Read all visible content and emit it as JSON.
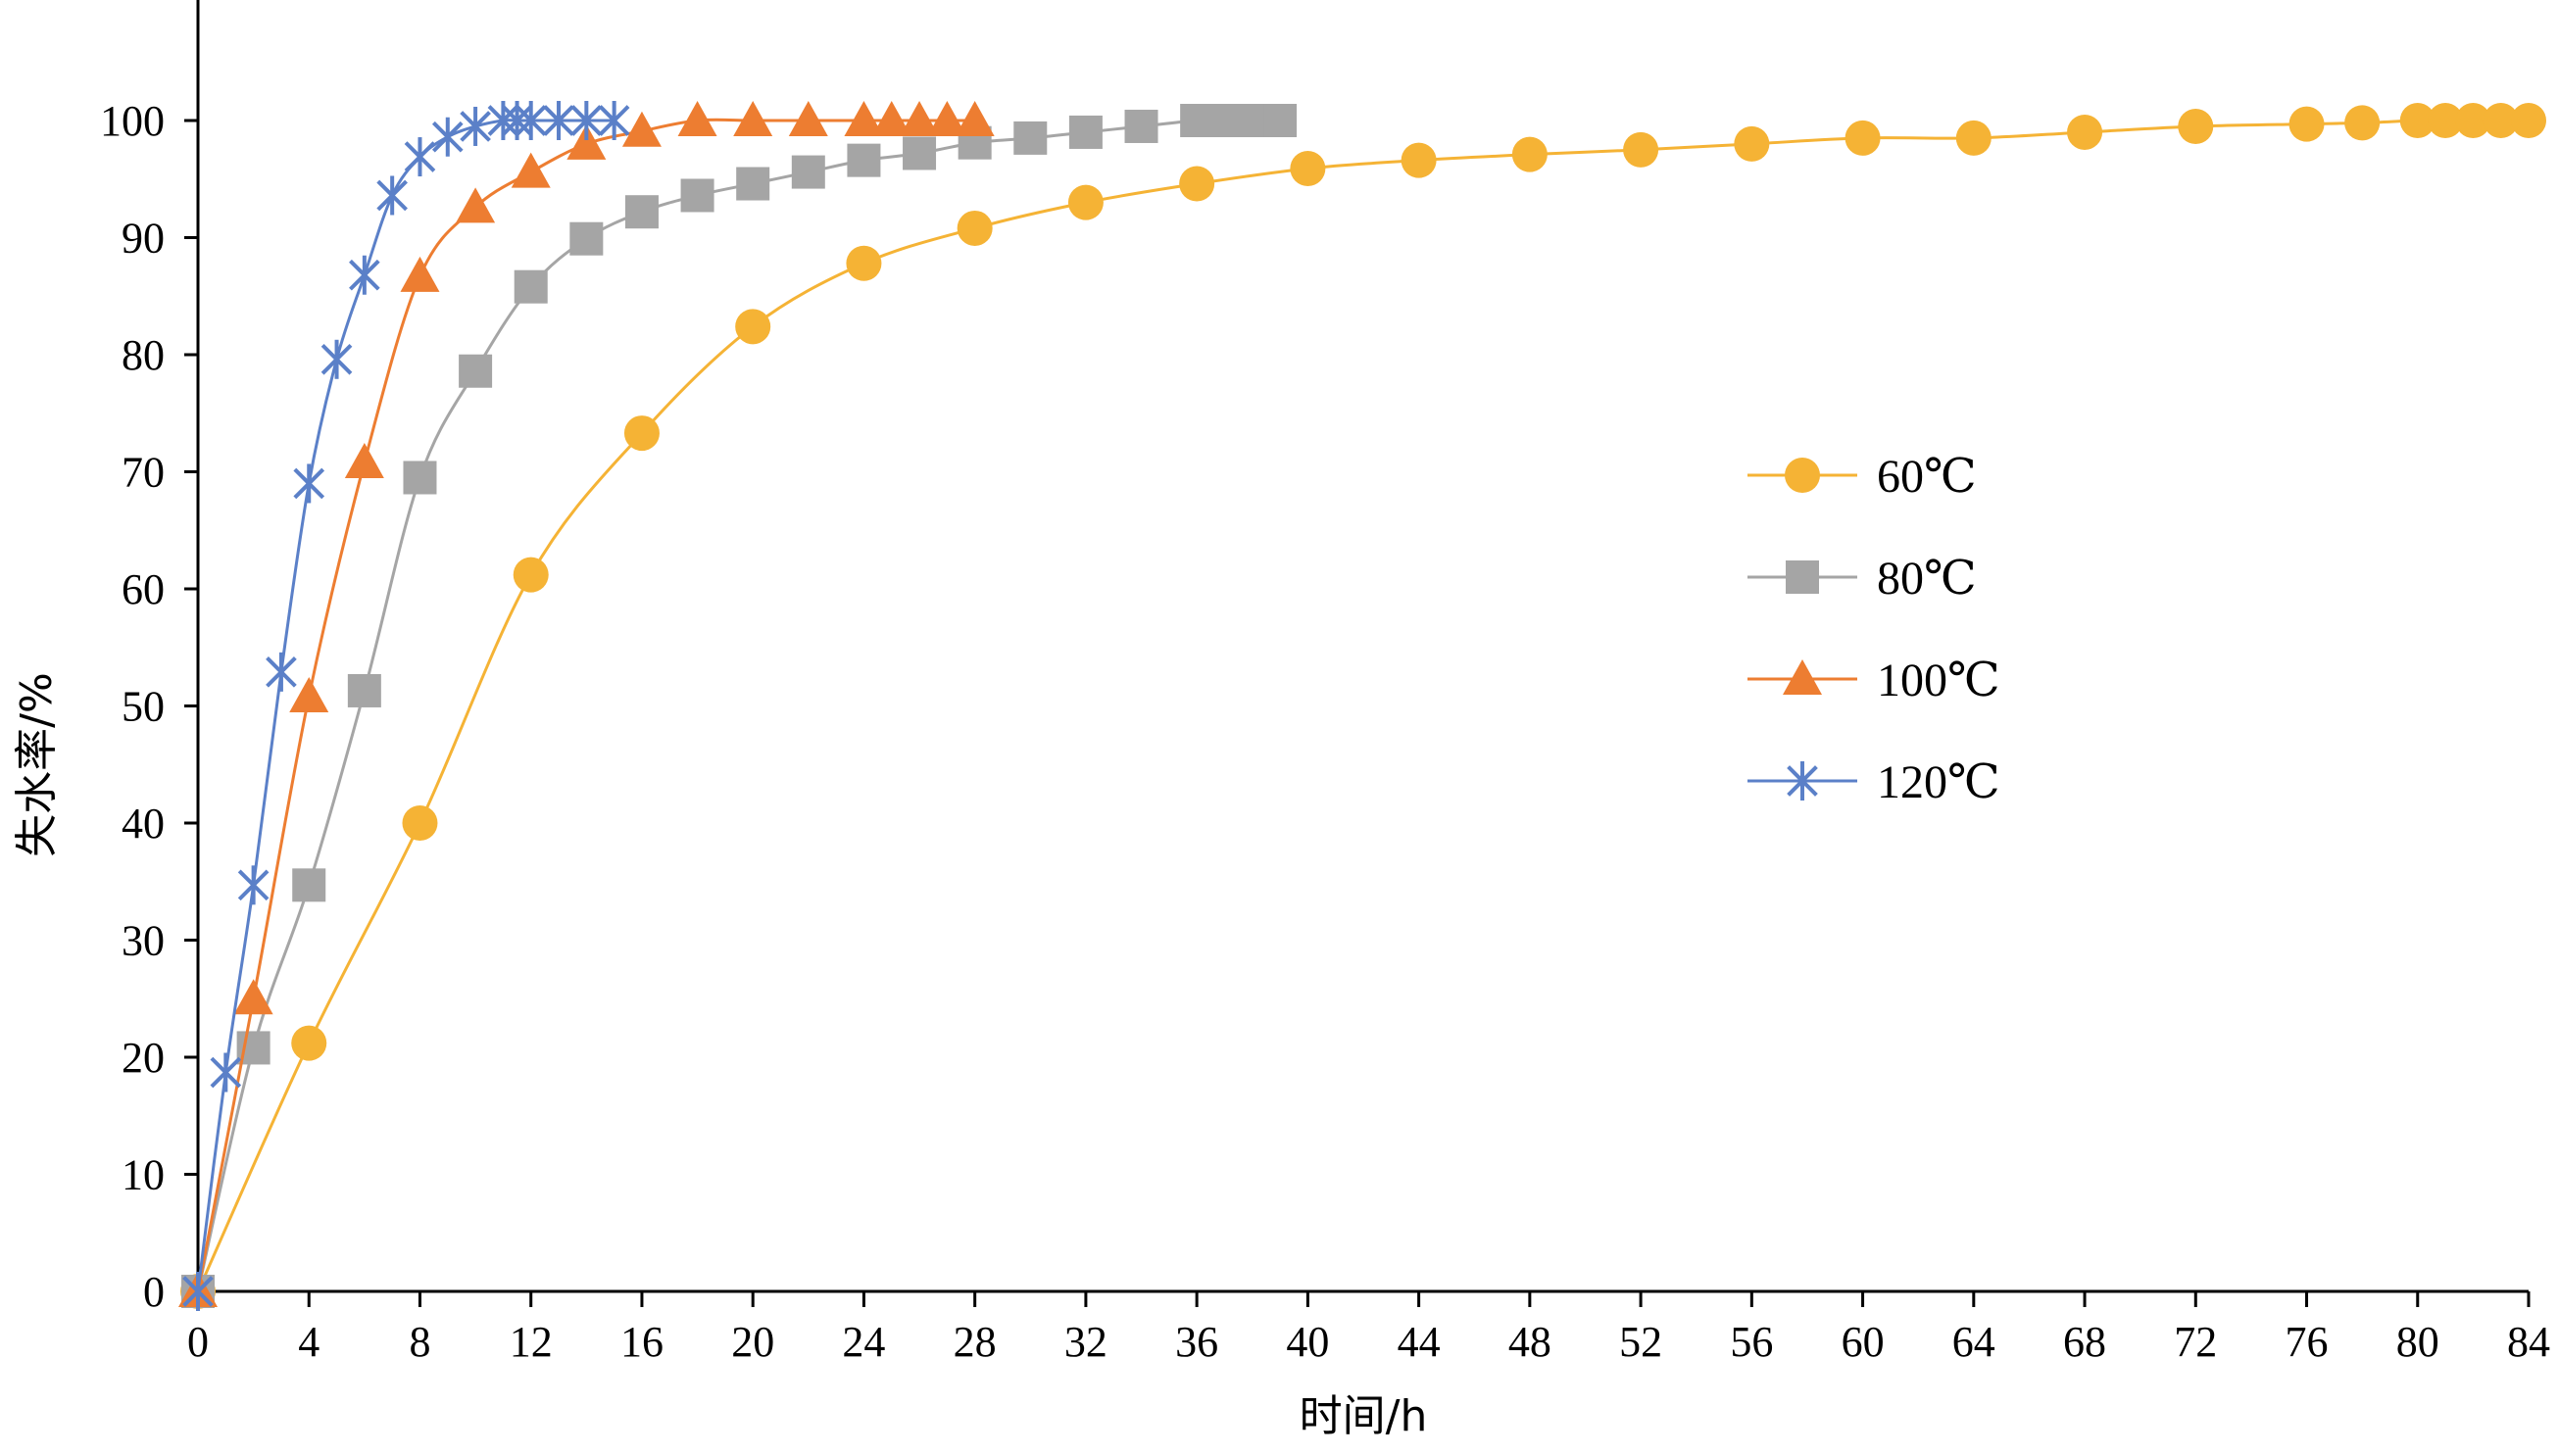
{
  "chart_data": {
    "type": "scatter",
    "xlabel": "时间/h",
    "ylabel": "失水率/%",
    "xlim": [
      0,
      84
    ],
    "ylim": [
      0,
      100
    ],
    "xticks": [
      "0",
      "4",
      "8",
      "12",
      "16",
      "20",
      "24",
      "28",
      "32",
      "36",
      "40",
      "44",
      "48",
      "52",
      "56",
      "60",
      "64",
      "68",
      "72",
      "76",
      "80",
      "84"
    ],
    "yticks": [
      "0",
      "10",
      "20",
      "30",
      "40",
      "50",
      "60",
      "70",
      "80",
      "90",
      "100"
    ],
    "grid": false,
    "legend_position": "right",
    "series": [
      {
        "name": "60℃",
        "color": "#F5B335",
        "marker": "circle",
        "points": [
          [
            0,
            0
          ],
          [
            4,
            21.2
          ],
          [
            8,
            40
          ],
          [
            12,
            61.2
          ],
          [
            16,
            73.3
          ],
          [
            20,
            82.4
          ],
          [
            24,
            87.8
          ],
          [
            28,
            90.8
          ],
          [
            32,
            93
          ],
          [
            36,
            94.6
          ],
          [
            40,
            95.9
          ],
          [
            44,
            96.6
          ],
          [
            48,
            97.1
          ],
          [
            52,
            97.5
          ],
          [
            56,
            98
          ],
          [
            60,
            98.5
          ],
          [
            64,
            98.5
          ],
          [
            68,
            99
          ],
          [
            72,
            99.5
          ],
          [
            76,
            99.7
          ],
          [
            78,
            99.8
          ],
          [
            80,
            100
          ],
          [
            81,
            100
          ],
          [
            82,
            100
          ],
          [
            83,
            100
          ],
          [
            84,
            100
          ]
        ]
      },
      {
        "name": "80℃",
        "color": "#A5A5A5",
        "marker": "square",
        "points": [
          [
            0,
            0
          ],
          [
            2,
            20.8
          ],
          [
            4,
            34.7
          ],
          [
            6,
            51.3
          ],
          [
            8,
            69.5
          ],
          [
            10,
            78.6
          ],
          [
            12,
            85.8
          ],
          [
            14,
            89.9
          ],
          [
            16,
            92.2
          ],
          [
            18,
            93.6
          ],
          [
            20,
            94.6
          ],
          [
            22,
            95.6
          ],
          [
            24,
            96.6
          ],
          [
            26,
            97.2
          ],
          [
            28,
            98.1
          ],
          [
            30,
            98.5
          ],
          [
            32,
            99
          ],
          [
            34,
            99.5
          ],
          [
            36,
            100
          ],
          [
            37,
            100
          ],
          [
            38,
            100
          ],
          [
            39,
            100
          ]
        ]
      },
      {
        "name": "100℃",
        "color": "#ED7D31",
        "marker": "triangle",
        "points": [
          [
            0,
            0
          ],
          [
            2,
            25
          ],
          [
            4,
            50.8
          ],
          [
            6,
            70.8
          ],
          [
            8,
            86.7
          ],
          [
            10,
            92.6
          ],
          [
            12,
            95.6
          ],
          [
            14,
            98
          ],
          [
            16,
            99.1
          ],
          [
            18,
            100
          ],
          [
            20,
            100
          ],
          [
            22,
            100
          ],
          [
            24,
            100
          ],
          [
            25,
            100
          ],
          [
            26,
            100
          ],
          [
            27,
            100
          ],
          [
            28,
            100
          ]
        ]
      },
      {
        "name": "120℃",
        "color": "#5B80C8",
        "marker": "asterisk",
        "points": [
          [
            0,
            0
          ],
          [
            1,
            18.7
          ],
          [
            2,
            34.7
          ],
          [
            3,
            52.9
          ],
          [
            4,
            69
          ],
          [
            5,
            79.6
          ],
          [
            6,
            86.8
          ],
          [
            7,
            93.6
          ],
          [
            8,
            96.9
          ],
          [
            9,
            98.6
          ],
          [
            10,
            99.5
          ],
          [
            11,
            100
          ],
          [
            11.5,
            100
          ],
          [
            12,
            100
          ],
          [
            13,
            100
          ],
          [
            14,
            100
          ],
          [
            15,
            100
          ]
        ]
      }
    ]
  }
}
